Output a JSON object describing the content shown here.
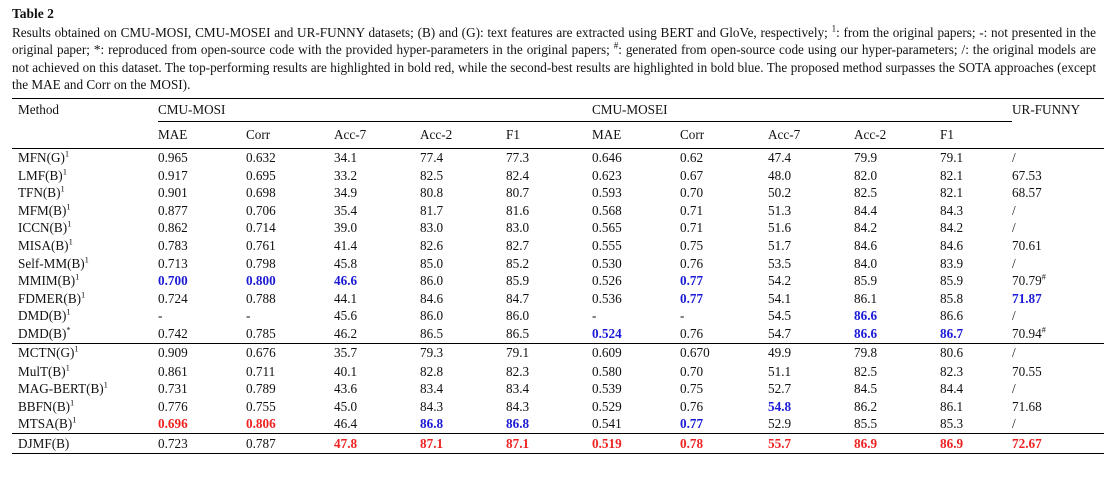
{
  "caption": {
    "title": "Table 2",
    "text_parts": [
      "Results obtained on CMU-MOSI, CMU-MOSEI and UR-FUNNY datasets; (B) and (G): text features are extracted using BERT and GloVe, respectively; ",
      "1",
      ": from the original papers; -: not presented in the original paper; *: reproduced from open-source code with the provided hyper-parameters in the original papers; ",
      "#",
      ": generated from open-source code using our hyper-parameters; /: the original models are not achieved on this dataset. The top-performing results are highlighted in bold red, while the second-best results are highlighted in bold blue. The proposed method surpasses the SOTA approaches (except the MAE and Corr on the MOSI)."
    ]
  },
  "header": {
    "method": "Method",
    "datasets": [
      "CMU-MOSI",
      "CMU-MOSEI",
      "UR-FUNNY"
    ],
    "metrics": [
      "MAE",
      "Corr",
      "Acc-7",
      "Acc-2",
      "F1",
      "MAE",
      "Corr",
      "Acc-7",
      "Acc-2",
      "F1"
    ]
  },
  "groups": [
    [
      {
        "name": "MFN(G)",
        "sup": "1",
        "cells": [
          [
            "0.965",
            ""
          ],
          [
            "0.632",
            ""
          ],
          [
            "34.1",
            ""
          ],
          [
            "77.4",
            ""
          ],
          [
            "77.3",
            ""
          ],
          [
            "0.646",
            ""
          ],
          [
            "0.62",
            ""
          ],
          [
            "47.4",
            ""
          ],
          [
            "79.9",
            ""
          ],
          [
            "79.1",
            ""
          ],
          [
            "/",
            ""
          ]
        ]
      },
      {
        "name": "LMF(B)",
        "sup": "1",
        "cells": [
          [
            "0.917",
            ""
          ],
          [
            "0.695",
            ""
          ],
          [
            "33.2",
            ""
          ],
          [
            "82.5",
            ""
          ],
          [
            "82.4",
            ""
          ],
          [
            "0.623",
            ""
          ],
          [
            "0.67",
            ""
          ],
          [
            "48.0",
            ""
          ],
          [
            "82.0",
            ""
          ],
          [
            "82.1",
            ""
          ],
          [
            "67.53",
            ""
          ]
        ]
      },
      {
        "name": "TFN(B)",
        "sup": "1",
        "cells": [
          [
            "0.901",
            ""
          ],
          [
            "0.698",
            ""
          ],
          [
            "34.9",
            ""
          ],
          [
            "80.8",
            ""
          ],
          [
            "80.7",
            ""
          ],
          [
            "0.593",
            ""
          ],
          [
            "0.70",
            ""
          ],
          [
            "50.2",
            ""
          ],
          [
            "82.5",
            ""
          ],
          [
            "82.1",
            ""
          ],
          [
            "68.57",
            ""
          ]
        ]
      },
      {
        "name": "MFM(B)",
        "sup": "1",
        "cells": [
          [
            "0.877",
            ""
          ],
          [
            "0.706",
            ""
          ],
          [
            "35.4",
            ""
          ],
          [
            "81.7",
            ""
          ],
          [
            "81.6",
            ""
          ],
          [
            "0.568",
            ""
          ],
          [
            "0.71",
            ""
          ],
          [
            "51.3",
            ""
          ],
          [
            "84.4",
            ""
          ],
          [
            "84.3",
            ""
          ],
          [
            "/",
            ""
          ]
        ]
      },
      {
        "name": "ICCN(B)",
        "sup": "1",
        "cells": [
          [
            "0.862",
            ""
          ],
          [
            "0.714",
            ""
          ],
          [
            "39.0",
            ""
          ],
          [
            "83.0",
            ""
          ],
          [
            "83.0",
            ""
          ],
          [
            "0.565",
            ""
          ],
          [
            "0.71",
            ""
          ],
          [
            "51.6",
            ""
          ],
          [
            "84.2",
            ""
          ],
          [
            "84.2",
            ""
          ],
          [
            "/",
            ""
          ]
        ]
      },
      {
        "name": "MISA(B)",
        "sup": "1",
        "cells": [
          [
            "0.783",
            ""
          ],
          [
            "0.761",
            ""
          ],
          [
            "41.4",
            ""
          ],
          [
            "82.6",
            ""
          ],
          [
            "82.7",
            ""
          ],
          [
            "0.555",
            ""
          ],
          [
            "0.75",
            ""
          ],
          [
            "51.7",
            ""
          ],
          [
            "84.6",
            ""
          ],
          [
            "84.6",
            ""
          ],
          [
            "70.61",
            ""
          ]
        ]
      },
      {
        "name": "Self-MM(B)",
        "sup": "1",
        "cells": [
          [
            "0.713",
            ""
          ],
          [
            "0.798",
            ""
          ],
          [
            "45.8",
            ""
          ],
          [
            "85.0",
            ""
          ],
          [
            "85.2",
            ""
          ],
          [
            "0.530",
            ""
          ],
          [
            "0.76",
            ""
          ],
          [
            "53.5",
            ""
          ],
          [
            "84.0",
            ""
          ],
          [
            "83.9",
            ""
          ],
          [
            "/",
            ""
          ]
        ]
      },
      {
        "name": "MMIM(B)",
        "sup": "1",
        "cells": [
          [
            "0.700",
            "blue"
          ],
          [
            "0.800",
            "blue"
          ],
          [
            "46.6",
            "blue"
          ],
          [
            "86.0",
            ""
          ],
          [
            "85.9",
            ""
          ],
          [
            "0.526",
            ""
          ],
          [
            "0.77",
            "blue"
          ],
          [
            "54.2",
            ""
          ],
          [
            "85.9",
            ""
          ],
          [
            "85.9",
            ""
          ],
          [
            "70.79",
            ""
          ]
        ],
        "ur_sup": "#"
      },
      {
        "name": "FDMER(B)",
        "sup": "1",
        "cells": [
          [
            "0.724",
            ""
          ],
          [
            "0.788",
            ""
          ],
          [
            "44.1",
            ""
          ],
          [
            "84.6",
            ""
          ],
          [
            "84.7",
            ""
          ],
          [
            "0.536",
            ""
          ],
          [
            "0.77",
            "blue"
          ],
          [
            "54.1",
            ""
          ],
          [
            "86.1",
            ""
          ],
          [
            "85.8",
            ""
          ],
          [
            "71.87",
            "blue"
          ]
        ]
      },
      {
        "name": "DMD(B)",
        "sup": "1",
        "cells": [
          [
            "-",
            ""
          ],
          [
            "-",
            ""
          ],
          [
            "45.6",
            ""
          ],
          [
            "86.0",
            ""
          ],
          [
            "86.0",
            ""
          ],
          [
            "-",
            ""
          ],
          [
            "-",
            ""
          ],
          [
            "54.5",
            ""
          ],
          [
            "86.6",
            "blue"
          ],
          [
            "86.6",
            ""
          ],
          [
            "/",
            ""
          ]
        ]
      },
      {
        "name": "DMD(B)",
        "sup": "*",
        "cells": [
          [
            "0.742",
            ""
          ],
          [
            "0.785",
            ""
          ],
          [
            "46.2",
            ""
          ],
          [
            "86.5",
            ""
          ],
          [
            "86.5",
            ""
          ],
          [
            "0.524",
            "blue"
          ],
          [
            "0.76",
            ""
          ],
          [
            "54.7",
            ""
          ],
          [
            "86.6",
            "blue"
          ],
          [
            "86.7",
            "blue"
          ],
          [
            "70.94",
            ""
          ]
        ],
        "ur_sup": "#"
      }
    ],
    [
      {
        "name": "MCTN(G)",
        "sup": "1",
        "cells": [
          [
            "0.909",
            ""
          ],
          [
            "0.676",
            ""
          ],
          [
            "35.7",
            ""
          ],
          [
            "79.3",
            ""
          ],
          [
            "79.1",
            ""
          ],
          [
            "0.609",
            ""
          ],
          [
            "0.670",
            ""
          ],
          [
            "49.9",
            ""
          ],
          [
            "79.8",
            ""
          ],
          [
            "80.6",
            ""
          ],
          [
            "/",
            ""
          ]
        ]
      },
      {
        "name": "MulT(B)",
        "sup": "1",
        "cells": [
          [
            "0.861",
            ""
          ],
          [
            "0.711",
            ""
          ],
          [
            "40.1",
            ""
          ],
          [
            "82.8",
            ""
          ],
          [
            "82.3",
            ""
          ],
          [
            "0.580",
            ""
          ],
          [
            "0.70",
            ""
          ],
          [
            "51.1",
            ""
          ],
          [
            "82.5",
            ""
          ],
          [
            "82.3",
            ""
          ],
          [
            "70.55",
            ""
          ]
        ]
      },
      {
        "name": "MAG-BERT(B)",
        "sup": "1",
        "cells": [
          [
            "0.731",
            ""
          ],
          [
            "0.789",
            ""
          ],
          [
            "43.6",
            ""
          ],
          [
            "83.4",
            ""
          ],
          [
            "83.4",
            ""
          ],
          [
            "0.539",
            ""
          ],
          [
            "0.75",
            ""
          ],
          [
            "52.7",
            ""
          ],
          [
            "84.5",
            ""
          ],
          [
            "84.4",
            ""
          ],
          [
            "/",
            ""
          ]
        ]
      },
      {
        "name": "BBFN(B)",
        "sup": "1",
        "cells": [
          [
            "0.776",
            ""
          ],
          [
            "0.755",
            ""
          ],
          [
            "45.0",
            ""
          ],
          [
            "84.3",
            ""
          ],
          [
            "84.3",
            ""
          ],
          [
            "0.529",
            ""
          ],
          [
            "0.76",
            ""
          ],
          [
            "54.8",
            "blue"
          ],
          [
            "86.2",
            ""
          ],
          [
            "86.1",
            ""
          ],
          [
            "71.68",
            ""
          ]
        ]
      },
      {
        "name": "MTSA(B)",
        "sup": "1",
        "cells": [
          [
            "0.696",
            "red"
          ],
          [
            "0.806",
            "red"
          ],
          [
            "46.4",
            ""
          ],
          [
            "86.8",
            "blue"
          ],
          [
            "86.8",
            "blue"
          ],
          [
            "0.541",
            ""
          ],
          [
            "0.77",
            "blue"
          ],
          [
            "52.9",
            ""
          ],
          [
            "85.5",
            ""
          ],
          [
            "85.3",
            ""
          ],
          [
            "/",
            ""
          ]
        ]
      }
    ],
    [
      {
        "name": "DJMF(B)",
        "sup": "",
        "cells": [
          [
            "0.723",
            ""
          ],
          [
            "0.787",
            ""
          ],
          [
            "47.8",
            "red"
          ],
          [
            "87.1",
            "red"
          ],
          [
            "87.1",
            "red"
          ],
          [
            "0.519",
            "red"
          ],
          [
            "0.78",
            "red"
          ],
          [
            "55.7",
            "red"
          ],
          [
            "86.9",
            "red"
          ],
          [
            "86.9",
            "red"
          ],
          [
            "72.67",
            "red"
          ]
        ]
      }
    ]
  ]
}
